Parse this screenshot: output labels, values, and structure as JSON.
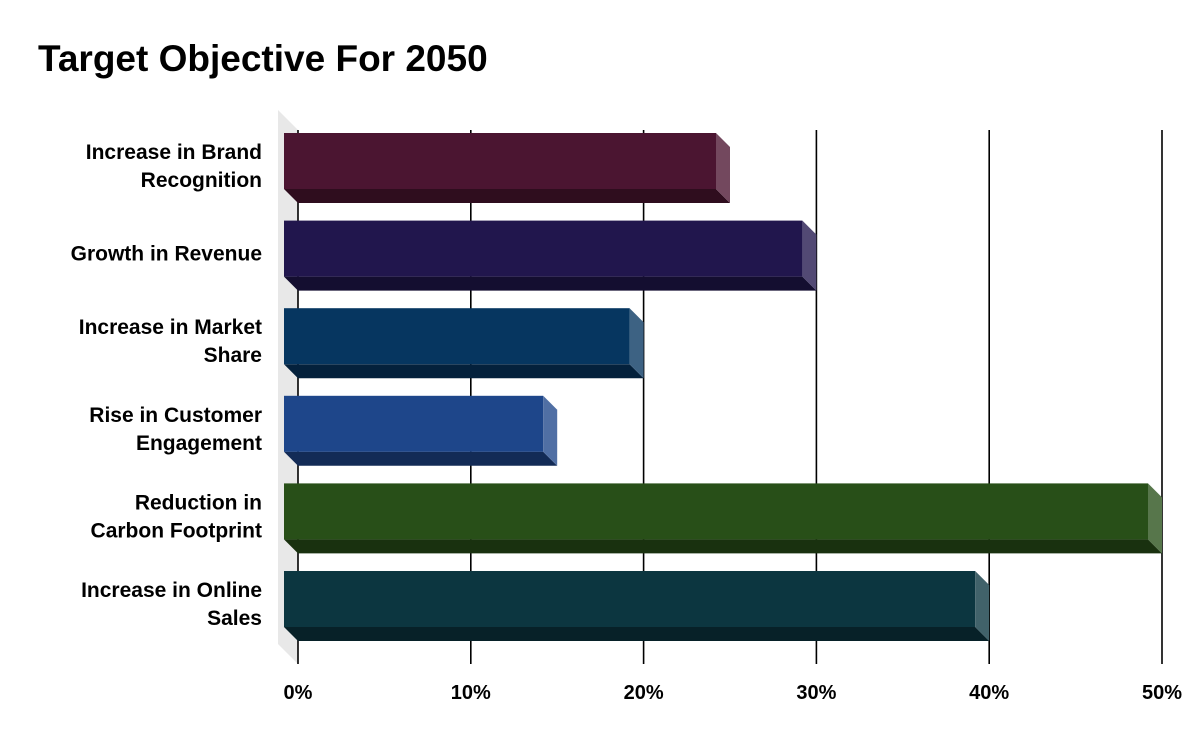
{
  "chart_data": {
    "type": "bar",
    "orientation": "horizontal",
    "title": "Target Objective For 2050",
    "xlabel": "",
    "ylabel": "",
    "categories": [
      [
        "Increase in Brand",
        "Recognition"
      ],
      [
        "Growth in Revenue"
      ],
      [
        "Increase in Market",
        "Share"
      ],
      [
        "Rise in Customer",
        "Engagement"
      ],
      [
        "Reduction in",
        "Carbon Footprint"
      ],
      [
        "Increase in Online",
        "Sales"
      ]
    ],
    "values": [
      25,
      30,
      20,
      15,
      50,
      40
    ],
    "colors": [
      "#4b1531",
      "#21164d",
      "#063660",
      "#1e468a",
      "#284f18",
      "#0c3640"
    ],
    "xlim": [
      0,
      50
    ],
    "ticks": [
      0,
      10,
      20,
      30,
      40,
      50
    ],
    "tick_labels": [
      "0%",
      "10%",
      "20%",
      "30%",
      "40%",
      "50%"
    ],
    "grid": true,
    "legend": "none",
    "style": "3d"
  }
}
